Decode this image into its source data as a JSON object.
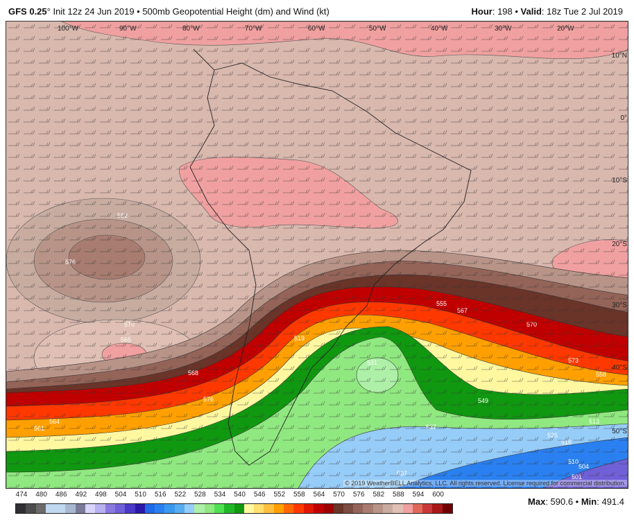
{
  "header": {
    "model": "GFS 0.25",
    "degree": "°",
    "init": " Init 12z 24 Jun 2019 • 500mb Geopotential Height (dm) and Wind (kt)",
    "hour_label": "Hour",
    "hour": ": 198 • ",
    "valid_label": "Valid",
    "valid": ": 18z Tue 2 Jul 2019"
  },
  "map": {
    "longitude_labels": [
      "100°W",
      "90°W",
      "80°W",
      "70°W",
      "60°W",
      "50°W",
      "40°W",
      "30°W",
      "20°W"
    ],
    "latitude_labels": [
      "10°N",
      "0°",
      "10°S",
      "20°S",
      "30°S",
      "40°S",
      "50°S"
    ],
    "contour_labels": [
      "582",
      "576",
      "570",
      "565",
      "568",
      "576",
      "564",
      "561",
      "555",
      "567",
      "570",
      "573",
      "558",
      "549",
      "537",
      "525",
      "516",
      "510",
      "504",
      "501",
      "507",
      "513",
      "531",
      "519"
    ],
    "copyright": "© 2019 WeatherBELL Analytics, LLC. All rights reserved. License required for commercial distribution."
  },
  "colorbar": {
    "labels": [
      "474",
      "480",
      "486",
      "492",
      "498",
      "504",
      "510",
      "516",
      "522",
      "528",
      "534",
      "540",
      "546",
      "552",
      "558",
      "564",
      "570",
      "576",
      "582",
      "588",
      "594",
      "600"
    ],
    "colors": [
      "#2f2f33",
      "#4d4d4d",
      "#6b6b6b",
      "#c0d8f0",
      "#c0d8f0",
      "#a8b8d0",
      "#7a7a99",
      "#d8d4fa",
      "#b8b0f0",
      "#8a7ae0",
      "#7060d8",
      "#4a38c8",
      "#2a18a8",
      "#1e6ae8",
      "#2a80f0",
      "#3a98f0",
      "#56aef0",
      "#96ccf8",
      "#aef0a8",
      "#90e880",
      "#4ee050",
      "#20b828",
      "#109810",
      "#fff8a0",
      "#ffe070",
      "#ffc040",
      "#ffa000",
      "#ff6800",
      "#ff3800",
      "#e01800",
      "#c00000",
      "#a00000",
      "#6a3428",
      "#7c4c40",
      "#946458",
      "#a87c70",
      "#b89488",
      "#c8aca0",
      "#e0c0b4",
      "#f0a0a0",
      "#e06858",
      "#c83838",
      "#a81818",
      "#700000"
    ]
  },
  "stats": {
    "max_label": "Max",
    "max": ": 590.6 • ",
    "min_label": "Min",
    "min": ": 491.4"
  }
}
